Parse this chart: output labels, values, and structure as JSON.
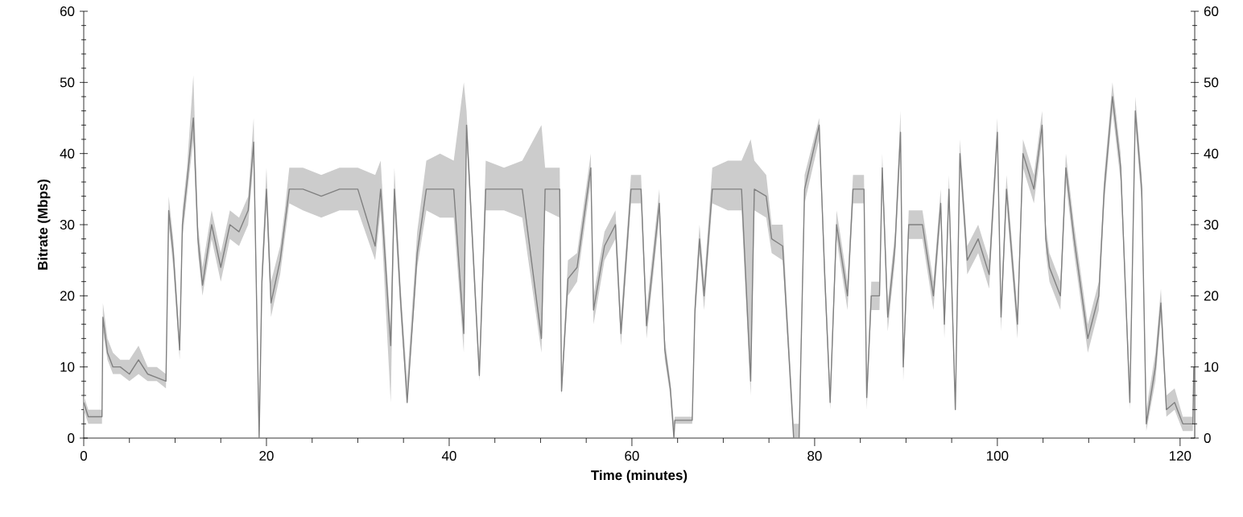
{
  "chart_data": {
    "type": "line",
    "xlabel": "Time (minutes)",
    "ylabel": "Bitrate (Mbps)",
    "xlim": [
      0,
      121.6
    ],
    "ylim": [
      0,
      60
    ],
    "y2lim": [
      0,
      60
    ],
    "xticks": [
      0,
      {
        "value": 5,
        "label": null
      },
      {
        "value": 10,
        "label": null
      },
      {
        "value": 15,
        "label": null
      },
      20,
      {
        "value": 25,
        "label": null
      },
      {
        "value": 30,
        "label": null
      },
      {
        "value": 35,
        "label": null
      },
      40,
      {
        "value": 45,
        "label": null
      },
      {
        "value": 50,
        "label": null
      },
      {
        "value": 55,
        "label": null
      },
      60,
      {
        "value": 65,
        "label": null
      },
      {
        "value": 70,
        "label": null
      },
      {
        "value": 75,
        "label": null
      },
      80,
      {
        "value": 85,
        "label": null
      },
      {
        "value": 90,
        "label": null
      },
      {
        "value": 95,
        "label": null
      },
      100,
      {
        "value": 105,
        "label": null
      },
      {
        "value": 110,
        "label": null
      },
      {
        "value": 115,
        "label": null
      },
      120
    ],
    "yticks": [
      0,
      {
        "value": 2,
        "label": null
      },
      {
        "value": 4,
        "label": null
      },
      {
        "value": 6,
        "label": null
      },
      {
        "value": 8,
        "label": null
      },
      10,
      {
        "value": 12,
        "label": null
      },
      {
        "value": 14,
        "label": null
      },
      {
        "value": 16,
        "label": null
      },
      {
        "value": 18,
        "label": null
      },
      20,
      {
        "value": 22,
        "label": null
      },
      {
        "value": 24,
        "label": null
      },
      {
        "value": 26,
        "label": null
      },
      {
        "value": 28,
        "label": null
      },
      30,
      {
        "value": 32,
        "label": null
      },
      {
        "value": 34,
        "label": null
      },
      {
        "value": 36,
        "label": null
      },
      {
        "value": 38,
        "label": null
      },
      40,
      {
        "value": 42,
        "label": null
      },
      {
        "value": 44,
        "label": null
      },
      {
        "value": 46,
        "label": null
      },
      {
        "value": 48,
        "label": null
      },
      50,
      {
        "value": 52,
        "label": null
      },
      {
        "value": 54,
        "label": null
      },
      {
        "value": 56,
        "label": null
      },
      {
        "value": 58,
        "label": null
      },
      60
    ],
    "y2ticks": [
      0,
      {
        "value": 2,
        "label": null
      },
      {
        "value": 4,
        "label": null
      },
      {
        "value": 6,
        "label": null
      },
      {
        "value": 8,
        "label": null
      },
      10,
      {
        "value": 12,
        "label": null
      },
      {
        "value": 14,
        "label": null
      },
      {
        "value": 16,
        "label": null
      },
      {
        "value": 18,
        "label": null
      },
      20,
      {
        "value": 22,
        "label": null
      },
      {
        "value": 24,
        "label": null
      },
      {
        "value": 26,
        "label": null
      },
      {
        "value": 28,
        "label": null
      },
      30,
      {
        "value": 32,
        "label": null
      },
      {
        "value": 34,
        "label": null
      },
      {
        "value": 36,
        "label": null
      },
      {
        "value": 38,
        "label": null
      },
      40,
      {
        "value": 42,
        "label": null
      },
      {
        "value": 44,
        "label": null
      },
      {
        "value": 46,
        "label": null
      },
      {
        "value": 48,
        "label": null
      },
      50,
      {
        "value": 52,
        "label": null
      },
      {
        "value": 54,
        "label": null
      },
      {
        "value": 56,
        "label": null
      },
      {
        "value": 58,
        "label": null
      },
      60
    ],
    "series": [
      {
        "color": "#808080",
        "x": [
          0,
          0.5,
          2,
          2.1,
          2.6,
          3.2,
          4,
          5,
          6,
          7,
          8,
          9,
          9.3,
          9.8,
          10.5,
          10.8,
          11.3,
          12,
          12.5,
          13,
          14,
          15,
          16,
          17,
          18,
          18.6,
          19.2,
          19.5,
          20,
          20.5,
          21.5,
          22,
          22.5,
          24,
          26,
          28,
          30,
          31.9,
          32.5,
          33.6,
          34,
          34.7,
          35.4,
          36.5,
          37.5,
          39,
          40.5,
          41.6,
          41.9,
          43.3,
          44,
          46,
          48,
          50.1,
          50.5,
          52.1,
          52.3,
          53,
          54,
          55.5,
          55.8,
          57,
          58.2,
          58.8,
          59.9,
          61,
          61.6,
          63,
          63.6,
          64.2,
          64.6,
          64.7,
          66.6,
          66.9,
          67.4,
          67.9,
          68.8,
          70.5,
          72,
          73,
          73.4,
          74.7,
          75.3,
          76.5,
          77.7,
          78.3,
          78.9,
          80.5,
          81.1,
          81.7,
          82.4,
          83.6,
          84.2,
          85.4,
          85.7,
          86.2,
          87.1,
          87.4,
          88,
          88.8,
          89.4,
          89.7,
          90.3,
          91.8,
          93,
          93.8,
          94.2,
          94.7,
          95.4,
          95.9,
          96.7,
          97.9,
          99.1,
          100,
          100.4,
          101,
          102.2,
          102.8,
          104,
          104.9,
          105.3,
          105.7,
          106.9,
          107.5,
          108.4,
          109.9,
          111.1,
          111.7,
          112.6,
          113.5,
          114.5,
          115.1,
          115.8,
          116.3,
          117.3,
          117.9,
          118.5,
          119.4,
          120.3,
          121.4,
          121.5
        ],
        "values": [
          5,
          3,
          3,
          17,
          12,
          10,
          10,
          9,
          11,
          9,
          8.5,
          8,
          32,
          26,
          12.4,
          30,
          36,
          45,
          28,
          21.5,
          30,
          24,
          30,
          29,
          32,
          41.6,
          0,
          22,
          35,
          19,
          25,
          30,
          35,
          35,
          34,
          35,
          35,
          27,
          35,
          13,
          35,
          19,
          5,
          26,
          35,
          35,
          35,
          14.7,
          44,
          8.8,
          35,
          35,
          35,
          14,
          35,
          35,
          6.6,
          22.4,
          24,
          38,
          18,
          27,
          30,
          14.7,
          35,
          35,
          15.8,
          33,
          12.4,
          7,
          0,
          2.5,
          2.5,
          18,
          28,
          20,
          35,
          35,
          35,
          8,
          35,
          34,
          28,
          27,
          0,
          0,
          35,
          44,
          23,
          5,
          30,
          20,
          35,
          35,
          5.7,
          20,
          20,
          38,
          17,
          27,
          43,
          10,
          30,
          30,
          20,
          33,
          16,
          35,
          4,
          40,
          25,
          28,
          23,
          43,
          17,
          35,
          16,
          40,
          35,
          44,
          28,
          24,
          20,
          38,
          28,
          14,
          20,
          35,
          48,
          38,
          5,
          46,
          35,
          2,
          10,
          19,
          4,
          5,
          2,
          2,
          10
        ],
        "lower": [
          4,
          2,
          2,
          15,
          11,
          9,
          9,
          8,
          9,
          8,
          8,
          7,
          30,
          24,
          11,
          28,
          34,
          42,
          26,
          20,
          28,
          22,
          28,
          27,
          30,
          39,
          0,
          20,
          33,
          17,
          23,
          28,
          33,
          32,
          31,
          32,
          32,
          25,
          32,
          5,
          32,
          17,
          5,
          24,
          32,
          31,
          31,
          12,
          42,
          8,
          32,
          32,
          31,
          12,
          32,
          31,
          6,
          20,
          22,
          36,
          16,
          25,
          28,
          13,
          33,
          33,
          14,
          31,
          11,
          6,
          0,
          2,
          2,
          16,
          26,
          18,
          33,
          32,
          32,
          6,
          32,
          31,
          26,
          25,
          0,
          0,
          33,
          42,
          21,
          4,
          28,
          18,
          33,
          33,
          4,
          18,
          18,
          36,
          15,
          25,
          41,
          8,
          28,
          28,
          18,
          31,
          14,
          33,
          4,
          38,
          23,
          26,
          21,
          41,
          15,
          33,
          14,
          38,
          33,
          42,
          26,
          22,
          18,
          36,
          26,
          12,
          18,
          33,
          46,
          36,
          4,
          44,
          33,
          1,
          8,
          17,
          3,
          4,
          1,
          1,
          9
        ],
        "upper": [
          6,
          4,
          4,
          19,
          14,
          12,
          11,
          11,
          13,
          10,
          10,
          9,
          34,
          28,
          14,
          32,
          38,
          51,
          30,
          24,
          32,
          26,
          32,
          31,
          34,
          45,
          2,
          24,
          38,
          22,
          27,
          32,
          38,
          38,
          37,
          38,
          38,
          37,
          39,
          15,
          38,
          21,
          8,
          29,
          39,
          40,
          39,
          50,
          46,
          11,
          39,
          38,
          39,
          44,
          38,
          38,
          8,
          25,
          26,
          40,
          20,
          29,
          32,
          17,
          37,
          37,
          18,
          35,
          14,
          8,
          2,
          3,
          3,
          20,
          30,
          22,
          38,
          39,
          39,
          42,
          39,
          37,
          30,
          30,
          2,
          2,
          37,
          45,
          25,
          7,
          32,
          22,
          37,
          37,
          7,
          22,
          22,
          40,
          19,
          29,
          46,
          12,
          32,
          32,
          22,
          35,
          18,
          37,
          6,
          42,
          27,
          30,
          25,
          45,
          19,
          37,
          18,
          42,
          37,
          46,
          30,
          26,
          22,
          40,
          30,
          16,
          22,
          37,
          50,
          40,
          7,
          48,
          37,
          4,
          12,
          21,
          6,
          7,
          3,
          3,
          11
        ]
      }
    ]
  }
}
